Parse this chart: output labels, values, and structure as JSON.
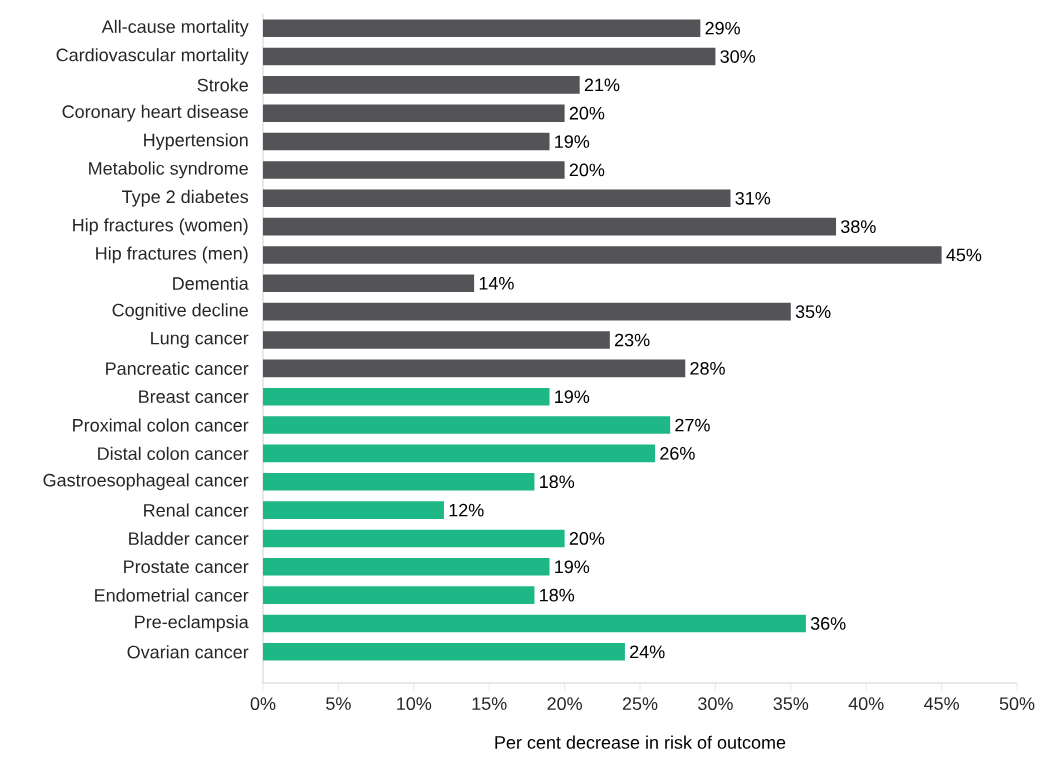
{
  "chart_data": {
    "type": "bar",
    "orientation": "horizontal",
    "xlabel": "Per cent decrease in risk of outcome",
    "categories": [
      "All-cause mortality",
      "Cardiovascular mortality",
      "Stroke",
      "Coronary heart disease",
      "Hypertension",
      "Metabolic syndrome",
      "Type 2 diabetes",
      "Hip fractures (women)",
      "Hip fractures (men)",
      "Dementia",
      "Cognitive decline",
      "Lung cancer",
      "Pancreatic cancer",
      "Breast cancer",
      "Proximal colon cancer",
      "Distal colon cancer",
      "Gastroesophageal cancer",
      "Renal cancer",
      "Bladder cancer",
      "Prostate cancer",
      "Endometrial cancer",
      "Pre-eclampsia",
      "Ovarian cancer"
    ],
    "values": [
      29,
      30,
      21,
      20,
      19,
      20,
      31,
      38,
      45,
      14,
      35,
      23,
      28,
      19,
      27,
      26,
      18,
      12,
      20,
      19,
      18,
      36,
      24
    ],
    "value_labels": [
      "29%",
      "30%",
      "21%",
      "20%",
      "19%",
      "20%",
      "31%",
      "38%",
      "45%",
      "14%",
      "35%",
      "23%",
      "28%",
      "19%",
      "27%",
      "26%",
      "18%",
      "12%",
      "20%",
      "19%",
      "18%",
      "36%",
      "24%"
    ],
    "colors": [
      "#545458",
      "#545458",
      "#545458",
      "#545458",
      "#545458",
      "#545458",
      "#545458",
      "#545458",
      "#545458",
      "#545458",
      "#545458",
      "#545458",
      "#545458",
      "#1db886",
      "#1db886",
      "#1db886",
      "#1db886",
      "#1db886",
      "#1db886",
      "#1db886",
      "#1db886",
      "#1db886",
      "#1db886"
    ],
    "xlim": [
      0,
      50
    ],
    "xticks": [
      {
        "value": 0,
        "label": "0%"
      },
      {
        "value": 5,
        "label": "5%"
      },
      {
        "value": 10,
        "label": "10%"
      },
      {
        "value": 15,
        "label": "15%"
      },
      {
        "value": 20,
        "label": "20%"
      },
      {
        "value": 25,
        "label": "25%"
      },
      {
        "value": 30,
        "label": "30%"
      },
      {
        "value": 35,
        "label": "35%"
      },
      {
        "value": 40,
        "label": "40%"
      },
      {
        "value": 45,
        "label": "45%"
      },
      {
        "value": 50,
        "label": "50%"
      }
    ]
  }
}
